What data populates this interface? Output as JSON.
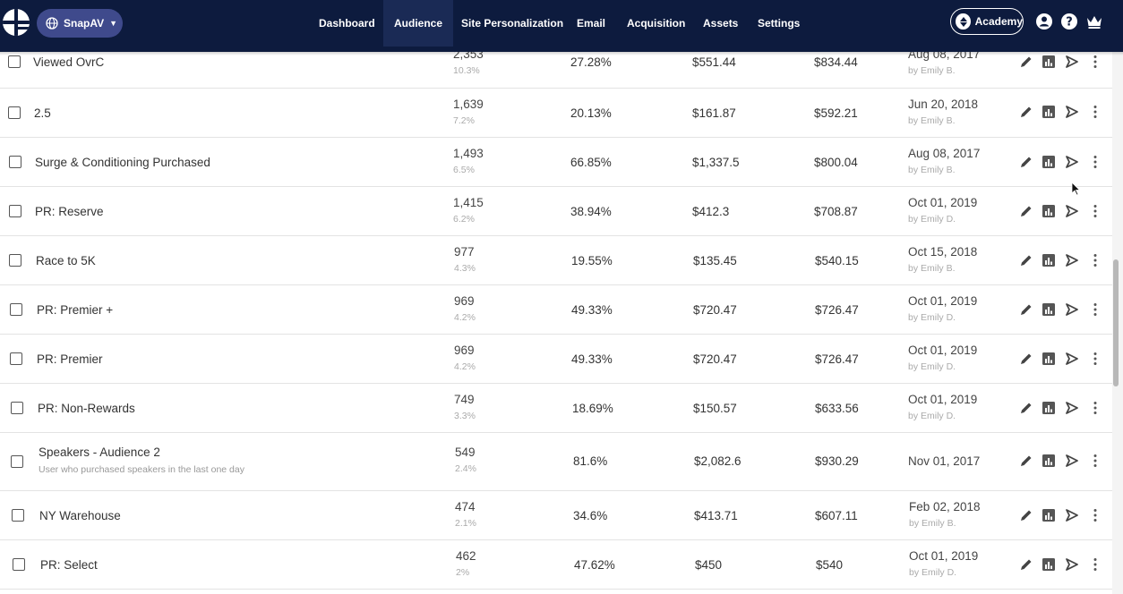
{
  "account": {
    "name": "SnapAV"
  },
  "nav": [
    {
      "label": "Dashboard",
      "active": false
    },
    {
      "label": "Audience",
      "active": true
    },
    {
      "label": "Site Personalization",
      "active": false
    },
    {
      "label": "Email",
      "active": false
    },
    {
      "label": "Acquisition",
      "active": false
    },
    {
      "label": "Assets",
      "active": false
    },
    {
      "label": "Settings",
      "active": false
    }
  ],
  "header_right": {
    "academy_label": "Academy",
    "icons": [
      "user-icon",
      "help-icon",
      "crown-icon"
    ]
  },
  "rows": [
    {
      "name": "Viewed OvrC",
      "description": "",
      "count": "2,353",
      "share": "10.3%",
      "rate": "27.28%",
      "value1": "$551.44",
      "value2": "$834.44",
      "date": "Aug 08, 2017",
      "by": "by Emily B."
    },
    {
      "name": "2.5",
      "description": "",
      "count": "1,639",
      "share": "7.2%",
      "rate": "20.13%",
      "value1": "$161.87",
      "value2": "$592.21",
      "date": "Jun 20, 2018",
      "by": "by Emily B."
    },
    {
      "name": "Surge & Conditioning Purchased",
      "description": "",
      "count": "1,493",
      "share": "6.5%",
      "rate": "66.85%",
      "value1": "$1,337.5",
      "value2": "$800.04",
      "date": "Aug 08, 2017",
      "by": "by Emily B."
    },
    {
      "name": "PR: Reserve",
      "description": "",
      "count": "1,415",
      "share": "6.2%",
      "rate": "38.94%",
      "value1": "$412.3",
      "value2": "$708.87",
      "date": "Oct 01, 2019",
      "by": "by Emily D."
    },
    {
      "name": "Race to 5K",
      "description": "",
      "count": "977",
      "share": "4.3%",
      "rate": "19.55%",
      "value1": "$135.45",
      "value2": "$540.15",
      "date": "Oct 15, 2018",
      "by": "by Emily B."
    },
    {
      "name": "PR: Premier +",
      "description": "",
      "count": "969",
      "share": "4.2%",
      "rate": "49.33%",
      "value1": "$720.47",
      "value2": "$726.47",
      "date": "Oct 01, 2019",
      "by": "by Emily D."
    },
    {
      "name": "PR: Premier",
      "description": "",
      "count": "969",
      "share": "4.2%",
      "rate": "49.33%",
      "value1": "$720.47",
      "value2": "$726.47",
      "date": "Oct 01, 2019",
      "by": "by Emily D."
    },
    {
      "name": "PR: Non-Rewards",
      "description": "",
      "count": "749",
      "share": "3.3%",
      "rate": "18.69%",
      "value1": "$150.57",
      "value2": "$633.56",
      "date": "Oct 01, 2019",
      "by": "by Emily D."
    },
    {
      "name": "Speakers - Audience 2",
      "description": "User who purchased speakers in the last one day",
      "count": "549",
      "share": "2.4%",
      "rate": "81.6%",
      "value1": "$2,082.6",
      "value2": "$930.29",
      "date": "Nov 01, 2017",
      "by": ""
    },
    {
      "name": "NY Warehouse",
      "description": "",
      "count": "474",
      "share": "2.1%",
      "rate": "34.6%",
      "value1": "$413.71",
      "value2": "$607.11",
      "date": "Feb 02, 2018",
      "by": "by Emily B."
    },
    {
      "name": "PR: Select",
      "description": "",
      "count": "462",
      "share": "2%",
      "rate": "47.62%",
      "value1": "$450",
      "value2": "$540",
      "date": "Oct 01, 2019",
      "by": "by Emily D."
    }
  ],
  "row_actions": [
    "edit-icon",
    "report-icon",
    "send-icon",
    "more-icon"
  ],
  "colors": {
    "nav_bg": "#0d1b3e",
    "account_pill": "#3f4a8c",
    "row_border": "#e3e3e3"
  }
}
